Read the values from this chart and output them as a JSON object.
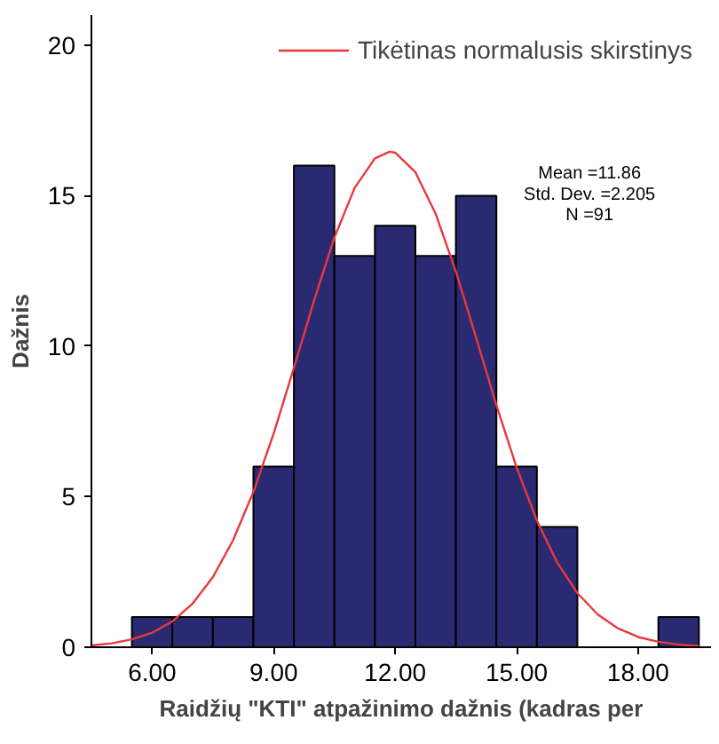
{
  "chart_data": {
    "type": "histogram",
    "xlabel": "Raidžių \"KTI\" atpažinimo dažnis (kadras per",
    "ylabel": "Dažnis",
    "bins": [
      5.5,
      6.5,
      7.5,
      8.5,
      9.5,
      10.5,
      11.5,
      12.5,
      13.5,
      14.5,
      15.5,
      16.5,
      17.5,
      18.5,
      19.5
    ],
    "values": [
      1,
      1,
      1,
      6,
      16,
      13,
      14,
      13,
      15,
      6,
      4,
      0,
      0,
      1
    ],
    "color": "#2a2a72",
    "series": [
      {
        "name": "Tikėtinas normalusis skirstinys",
        "type": "line",
        "color": "#e8383d",
        "x": [
          4.5,
          5.0,
          5.5,
          6.0,
          6.5,
          7.0,
          7.5,
          8.0,
          8.5,
          9.0,
          9.5,
          10.0,
          10.5,
          11.0,
          11.5,
          11.86,
          12.0,
          12.5,
          13.0,
          13.5,
          14.0,
          14.5,
          15.0,
          15.5,
          16.0,
          16.5,
          17.0,
          17.5,
          18.0,
          18.5,
          19.0,
          19.5
        ],
        "values": [
          0.06,
          0.13,
          0.26,
          0.48,
          0.86,
          1.45,
          2.33,
          3.56,
          5.16,
          7.1,
          9.28,
          11.53,
          13.61,
          15.26,
          16.24,
          16.46,
          16.43,
          15.78,
          14.4,
          12.48,
          10.28,
          8.04,
          5.97,
          4.21,
          2.82,
          1.8,
          1.09,
          0.63,
          0.34,
          0.18,
          0.09,
          0.04
        ]
      }
    ],
    "annotations": [
      "Mean =11.86",
      "Std. Dev. =2.205",
      "N =91"
    ],
    "xlim": [
      4.5,
      19.8
    ],
    "ylim": [
      0,
      21
    ],
    "xticks": [
      {
        "value": 6,
        "label": "6.00"
      },
      {
        "value": 9,
        "label": "9.00"
      },
      {
        "value": 12,
        "label": "12.00"
      },
      {
        "value": 15,
        "label": "15.00"
      },
      {
        "value": 18,
        "label": "18.00"
      }
    ],
    "yticks": [
      0,
      5,
      10,
      15,
      20
    ],
    "grid": false,
    "legend": "top right"
  }
}
